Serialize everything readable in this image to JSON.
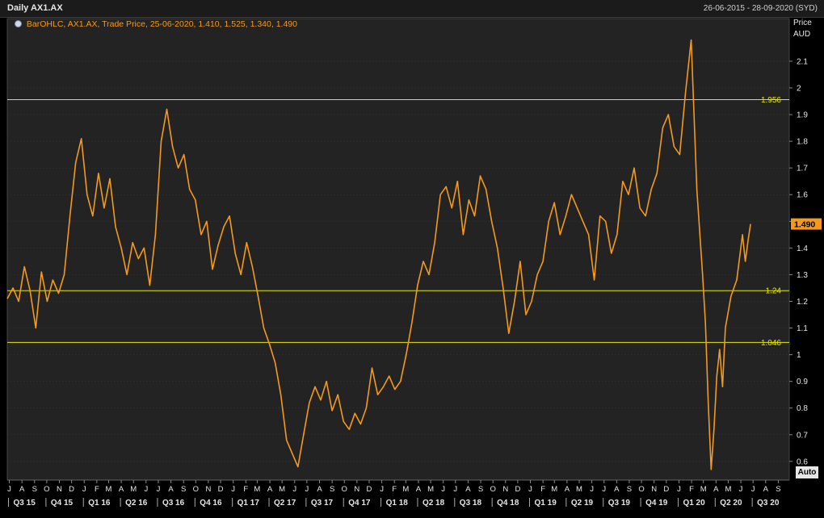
{
  "header": {
    "title": "Daily AX1.AX",
    "date_range": "26-06-2015 - 28-09-2020 (SYD)"
  },
  "legend": {
    "text": "BarOHLC, AX1.AX, Trade Price, 25-06-2020, 1.410, 1.525, 1.340, 1.490"
  },
  "y_axis_unit": [
    "Price",
    "AUD"
  ],
  "auto_button": "Auto",
  "colors": {
    "background": "#000000",
    "plot_bg": "#232323",
    "grid": "#444444",
    "series": "#f39a1e",
    "hline": "#e6e600",
    "last_badge": "#f39a1e",
    "axis_text": "#e6e6e6"
  },
  "chart_data": {
    "type": "line",
    "title": "Daily AX1.AX",
    "series_name": "AX1.AX",
    "ylim": [
      0.53,
      2.26
    ],
    "y_ticks": [
      0.6,
      0.7,
      0.8,
      0.9,
      1,
      1.1,
      1.2,
      1.3,
      1.4,
      1.5,
      1.6,
      1.7,
      1.8,
      1.9,
      2,
      2.1
    ],
    "y_tick_labels": [
      "0.6",
      "0.7",
      "0.8",
      "0.9",
      "1",
      "1.1",
      "1.2",
      "1.3",
      "1.4",
      "1.5",
      "1.6",
      "1.7",
      "1.8",
      "1.9",
      "2",
      "2.1"
    ],
    "x_range": [
      "2015-06-26",
      "2020-09-28"
    ],
    "last_value": 1.49,
    "last_value_label": "1.490",
    "hlines": [
      {
        "value": 1.956,
        "label": "1.956"
      },
      {
        "value": 1.24,
        "label": "1.24"
      },
      {
        "value": 1.046,
        "label": "1.046"
      }
    ],
    "month_labels": [
      [
        "2015-07-01",
        "J"
      ],
      [
        "2015-08-01",
        "A"
      ],
      [
        "2015-09-01",
        "S"
      ],
      [
        "2015-10-01",
        "O"
      ],
      [
        "2015-11-01",
        "N"
      ],
      [
        "2015-12-01",
        "D"
      ],
      [
        "2016-01-01",
        "J"
      ],
      [
        "2016-02-01",
        "F"
      ],
      [
        "2016-03-01",
        "M"
      ],
      [
        "2016-04-01",
        "A"
      ],
      [
        "2016-05-01",
        "M"
      ],
      [
        "2016-06-01",
        "J"
      ],
      [
        "2016-07-01",
        "J"
      ],
      [
        "2016-08-01",
        "A"
      ],
      [
        "2016-09-01",
        "S"
      ],
      [
        "2016-10-01",
        "O"
      ],
      [
        "2016-11-01",
        "N"
      ],
      [
        "2016-12-01",
        "D"
      ],
      [
        "2017-01-01",
        "J"
      ],
      [
        "2017-02-01",
        "F"
      ],
      [
        "2017-03-01",
        "M"
      ],
      [
        "2017-04-01",
        "A"
      ],
      [
        "2017-05-01",
        "M"
      ],
      [
        "2017-06-01",
        "J"
      ],
      [
        "2017-07-01",
        "J"
      ],
      [
        "2017-08-01",
        "A"
      ],
      [
        "2017-09-01",
        "S"
      ],
      [
        "2017-10-01",
        "O"
      ],
      [
        "2017-11-01",
        "N"
      ],
      [
        "2017-12-01",
        "D"
      ],
      [
        "2018-01-01",
        "J"
      ],
      [
        "2018-02-01",
        "F"
      ],
      [
        "2018-03-01",
        "M"
      ],
      [
        "2018-04-01",
        "A"
      ],
      [
        "2018-05-01",
        "M"
      ],
      [
        "2018-06-01",
        "J"
      ],
      [
        "2018-07-01",
        "J"
      ],
      [
        "2018-08-01",
        "A"
      ],
      [
        "2018-09-01",
        "S"
      ],
      [
        "2018-10-01",
        "O"
      ],
      [
        "2018-11-01",
        "N"
      ],
      [
        "2018-12-01",
        "D"
      ],
      [
        "2019-01-01",
        "J"
      ],
      [
        "2019-02-01",
        "F"
      ],
      [
        "2019-03-01",
        "M"
      ],
      [
        "2019-04-01",
        "A"
      ],
      [
        "2019-05-01",
        "M"
      ],
      [
        "2019-06-01",
        "J"
      ],
      [
        "2019-07-01",
        "J"
      ],
      [
        "2019-08-01",
        "A"
      ],
      [
        "2019-09-01",
        "S"
      ],
      [
        "2019-10-01",
        "O"
      ],
      [
        "2019-11-01",
        "N"
      ],
      [
        "2019-12-01",
        "D"
      ],
      [
        "2020-01-01",
        "J"
      ],
      [
        "2020-02-01",
        "F"
      ],
      [
        "2020-03-01",
        "M"
      ],
      [
        "2020-04-01",
        "A"
      ],
      [
        "2020-05-01",
        "M"
      ],
      [
        "2020-06-01",
        "J"
      ],
      [
        "2020-07-01",
        "J"
      ],
      [
        "2020-08-01",
        "A"
      ],
      [
        "2020-09-01",
        "S"
      ]
    ],
    "quarter_labels": [
      [
        "2015-07-01",
        "Q3 15"
      ],
      [
        "2015-10-01",
        "Q4 15"
      ],
      [
        "2016-01-01",
        "Q1 16"
      ],
      [
        "2016-04-01",
        "Q2 16"
      ],
      [
        "2016-07-01",
        "Q3 16"
      ],
      [
        "2016-10-01",
        "Q4 16"
      ],
      [
        "2017-01-01",
        "Q1 17"
      ],
      [
        "2017-04-01",
        "Q2 17"
      ],
      [
        "2017-07-01",
        "Q3 17"
      ],
      [
        "2017-10-01",
        "Q4 17"
      ],
      [
        "2018-01-01",
        "Q1 18"
      ],
      [
        "2018-04-01",
        "Q2 18"
      ],
      [
        "2018-07-01",
        "Q3 18"
      ],
      [
        "2018-10-01",
        "Q4 18"
      ],
      [
        "2019-01-01",
        "Q1 19"
      ],
      [
        "2019-04-01",
        "Q2 19"
      ],
      [
        "2019-07-01",
        "Q3 19"
      ],
      [
        "2019-10-01",
        "Q4 19"
      ],
      [
        "2020-01-01",
        "Q1 20"
      ],
      [
        "2020-04-01",
        "Q2 20"
      ],
      [
        "2020-07-01",
        "Q3 20"
      ]
    ],
    "points": [
      [
        "2015-06-26",
        1.21
      ],
      [
        "2015-07-10",
        1.25
      ],
      [
        "2015-07-24",
        1.2
      ],
      [
        "2015-08-07",
        1.33
      ],
      [
        "2015-08-21",
        1.24
      ],
      [
        "2015-09-04",
        1.1
      ],
      [
        "2015-09-18",
        1.31
      ],
      [
        "2015-10-02",
        1.2
      ],
      [
        "2015-10-16",
        1.28
      ],
      [
        "2015-10-30",
        1.23
      ],
      [
        "2015-11-13",
        1.3
      ],
      [
        "2015-11-27",
        1.52
      ],
      [
        "2015-12-11",
        1.72
      ],
      [
        "2015-12-25",
        1.81
      ],
      [
        "2016-01-08",
        1.6
      ],
      [
        "2016-01-22",
        1.52
      ],
      [
        "2016-02-05",
        1.68
      ],
      [
        "2016-02-19",
        1.55
      ],
      [
        "2016-03-04",
        1.66
      ],
      [
        "2016-03-18",
        1.48
      ],
      [
        "2016-04-01",
        1.4
      ],
      [
        "2016-04-15",
        1.3
      ],
      [
        "2016-04-29",
        1.42
      ],
      [
        "2016-05-13",
        1.36
      ],
      [
        "2016-05-27",
        1.4
      ],
      [
        "2016-06-10",
        1.26
      ],
      [
        "2016-06-24",
        1.45
      ],
      [
        "2016-07-08",
        1.8
      ],
      [
        "2016-07-22",
        1.92
      ],
      [
        "2016-08-05",
        1.78
      ],
      [
        "2016-08-19",
        1.7
      ],
      [
        "2016-09-02",
        1.75
      ],
      [
        "2016-09-16",
        1.62
      ],
      [
        "2016-09-30",
        1.58
      ],
      [
        "2016-10-14",
        1.45
      ],
      [
        "2016-10-28",
        1.5
      ],
      [
        "2016-11-11",
        1.32
      ],
      [
        "2016-11-25",
        1.41
      ],
      [
        "2016-12-09",
        1.48
      ],
      [
        "2016-12-23",
        1.52
      ],
      [
        "2017-01-06",
        1.38
      ],
      [
        "2017-01-20",
        1.3
      ],
      [
        "2017-02-03",
        1.42
      ],
      [
        "2017-02-17",
        1.33
      ],
      [
        "2017-03-03",
        1.22
      ],
      [
        "2017-03-17",
        1.1
      ],
      [
        "2017-03-31",
        1.04
      ],
      [
        "2017-04-14",
        0.97
      ],
      [
        "2017-04-28",
        0.85
      ],
      [
        "2017-05-12",
        0.68
      ],
      [
        "2017-05-26",
        0.63
      ],
      [
        "2017-06-09",
        0.58
      ],
      [
        "2017-06-23",
        0.7
      ],
      [
        "2017-07-07",
        0.82
      ],
      [
        "2017-07-21",
        0.88
      ],
      [
        "2017-08-04",
        0.83
      ],
      [
        "2017-08-18",
        0.9
      ],
      [
        "2017-09-01",
        0.79
      ],
      [
        "2017-09-15",
        0.85
      ],
      [
        "2017-09-29",
        0.75
      ],
      [
        "2017-10-13",
        0.72
      ],
      [
        "2017-10-27",
        0.78
      ],
      [
        "2017-11-10",
        0.74
      ],
      [
        "2017-11-24",
        0.8
      ],
      [
        "2017-12-08",
        0.95
      ],
      [
        "2017-12-22",
        0.85
      ],
      [
        "2018-01-05",
        0.88
      ],
      [
        "2018-01-19",
        0.92
      ],
      [
        "2018-02-02",
        0.87
      ],
      [
        "2018-02-16",
        0.9
      ],
      [
        "2018-03-02",
        1.0
      ],
      [
        "2018-03-16",
        1.12
      ],
      [
        "2018-03-30",
        1.26
      ],
      [
        "2018-04-13",
        1.35
      ],
      [
        "2018-04-27",
        1.3
      ],
      [
        "2018-05-11",
        1.42
      ],
      [
        "2018-05-25",
        1.6
      ],
      [
        "2018-06-08",
        1.63
      ],
      [
        "2018-06-22",
        1.55
      ],
      [
        "2018-07-06",
        1.65
      ],
      [
        "2018-07-20",
        1.45
      ],
      [
        "2018-08-03",
        1.58
      ],
      [
        "2018-08-17",
        1.52
      ],
      [
        "2018-08-31",
        1.67
      ],
      [
        "2018-09-14",
        1.62
      ],
      [
        "2018-09-28",
        1.5
      ],
      [
        "2018-10-12",
        1.4
      ],
      [
        "2018-10-26",
        1.25
      ],
      [
        "2018-11-09",
        1.08
      ],
      [
        "2018-11-23",
        1.2
      ],
      [
        "2018-12-07",
        1.35
      ],
      [
        "2018-12-21",
        1.15
      ],
      [
        "2019-01-04",
        1.2
      ],
      [
        "2019-01-18",
        1.3
      ],
      [
        "2019-02-01",
        1.35
      ],
      [
        "2019-02-15",
        1.5
      ],
      [
        "2019-03-01",
        1.57
      ],
      [
        "2019-03-15",
        1.45
      ],
      [
        "2019-03-29",
        1.52
      ],
      [
        "2019-04-12",
        1.6
      ],
      [
        "2019-04-26",
        1.55
      ],
      [
        "2019-05-10",
        1.5
      ],
      [
        "2019-05-24",
        1.45
      ],
      [
        "2019-06-07",
        1.28
      ],
      [
        "2019-06-21",
        1.52
      ],
      [
        "2019-07-05",
        1.5
      ],
      [
        "2019-07-19",
        1.38
      ],
      [
        "2019-08-02",
        1.45
      ],
      [
        "2019-08-16",
        1.65
      ],
      [
        "2019-08-30",
        1.6
      ],
      [
        "2019-09-13",
        1.7
      ],
      [
        "2019-09-27",
        1.55
      ],
      [
        "2019-10-11",
        1.52
      ],
      [
        "2019-10-25",
        1.62
      ],
      [
        "2019-11-08",
        1.68
      ],
      [
        "2019-11-22",
        1.85
      ],
      [
        "2019-12-06",
        1.9
      ],
      [
        "2019-12-20",
        1.78
      ],
      [
        "2020-01-03",
        1.75
      ],
      [
        "2020-01-17",
        1.98
      ],
      [
        "2020-01-31",
        2.18
      ],
      [
        "2020-02-14",
        1.62
      ],
      [
        "2020-02-28",
        1.3
      ],
      [
        "2020-03-06",
        1.12
      ],
      [
        "2020-03-13",
        0.82
      ],
      [
        "2020-03-20",
        0.57
      ],
      [
        "2020-03-27",
        0.72
      ],
      [
        "2020-04-03",
        0.92
      ],
      [
        "2020-04-10",
        1.02
      ],
      [
        "2020-04-17",
        0.88
      ],
      [
        "2020-04-24",
        1.1
      ],
      [
        "2020-05-08",
        1.22
      ],
      [
        "2020-05-22",
        1.28
      ],
      [
        "2020-06-05",
        1.45
      ],
      [
        "2020-06-12",
        1.35
      ],
      [
        "2020-06-19",
        1.43
      ],
      [
        "2020-06-25",
        1.49
      ]
    ]
  }
}
